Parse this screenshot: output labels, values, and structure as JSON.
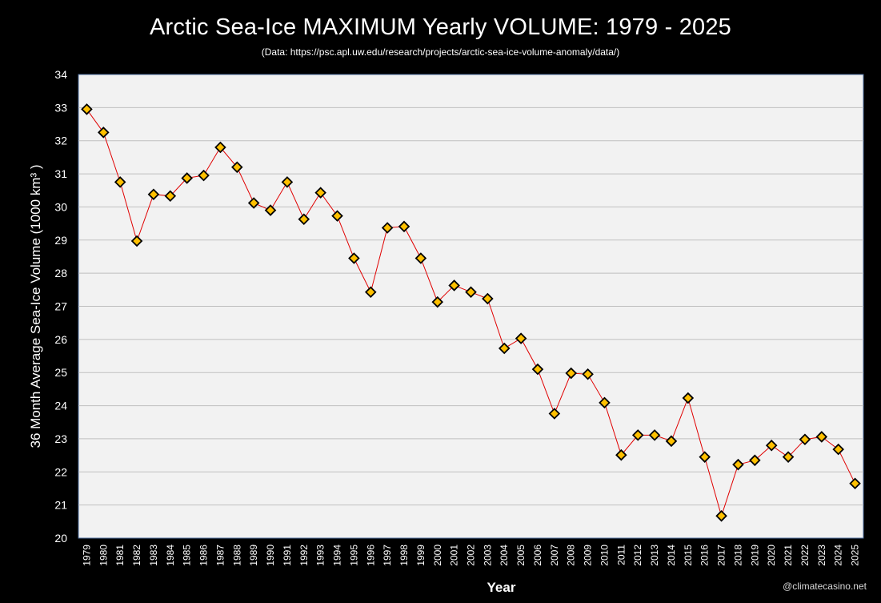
{
  "title": "Arctic Sea-Ice MAXIMUM Yearly VOLUME: 1979 - 2025",
  "subtitle": "(Data: https://psc.apl.uw.edu/research/projects/arctic-sea-ice-volume-anomaly/data/)",
  "watermark": "@climatecasino.net",
  "colors": {
    "background": "#000000",
    "plot_area": "#f2f2f2",
    "grid": "#bfbfbf",
    "line": "#e00000",
    "marker_fill": "#ffc000",
    "marker_stroke": "#000000",
    "text": "#ffffff"
  },
  "chart_data": {
    "type": "line",
    "title": "Arctic Sea-Ice MAXIMUM Yearly VOLUME: 1979 - 2025",
    "xlabel": "Year",
    "ylabel": "36 Month Average Sea-Ice Volume (1000 km³ )",
    "ylim": [
      20,
      34
    ],
    "yticks": [
      20,
      21,
      22,
      23,
      24,
      25,
      26,
      27,
      28,
      29,
      30,
      31,
      32,
      33,
      34
    ],
    "grid": true,
    "legend": "none",
    "marker": "diamond",
    "x": [
      1979,
      1980,
      1981,
      1982,
      1983,
      1984,
      1985,
      1986,
      1987,
      1988,
      1989,
      1990,
      1991,
      1992,
      1993,
      1994,
      1995,
      1996,
      1997,
      1998,
      1999,
      2000,
      2001,
      2002,
      2003,
      2004,
      2005,
      2006,
      2007,
      2008,
      2009,
      2010,
      2011,
      2012,
      2013,
      2014,
      2015,
      2016,
      2017,
      2018,
      2019,
      2020,
      2021,
      2022,
      2023,
      2024,
      2025
    ],
    "series": [
      {
        "values": [
          32.95,
          32.25,
          30.75,
          28.97,
          30.38,
          30.33,
          30.87,
          30.95,
          31.8,
          31.2,
          30.12,
          29.9,
          30.75,
          29.63,
          30.43,
          29.73,
          28.45,
          27.43,
          29.37,
          29.41,
          28.45,
          27.13,
          27.63,
          27.43,
          27.23,
          25.73,
          26.03,
          25.1,
          23.76,
          24.98,
          24.95,
          24.09,
          22.51,
          23.11,
          23.11,
          22.93,
          24.23,
          22.45,
          20.67,
          22.22,
          22.35,
          22.8,
          22.45,
          22.98,
          23.06,
          22.68,
          21.65
        ]
      }
    ]
  }
}
